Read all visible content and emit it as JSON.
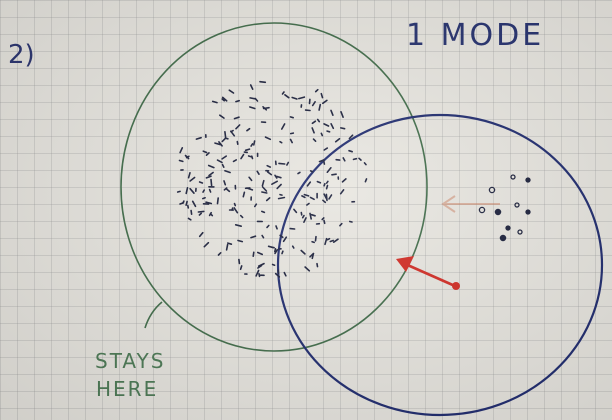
{
  "labels": {
    "problem_number": "2)",
    "mode_title": "1 MODE",
    "stays_line1": "STAYS",
    "stays_line2": "HERE"
  },
  "colors": {
    "paper": "#e8e6e0",
    "grid": "#9a9a9a",
    "green_ink": "#3f6b48",
    "blue_ink": "#1e2a6e",
    "red_ink": "#d22a22",
    "dot_ink": "#1a1f3a"
  },
  "icons": {
    "arrow": "red-arrow",
    "faint_arrow": "faint-arrow"
  }
}
